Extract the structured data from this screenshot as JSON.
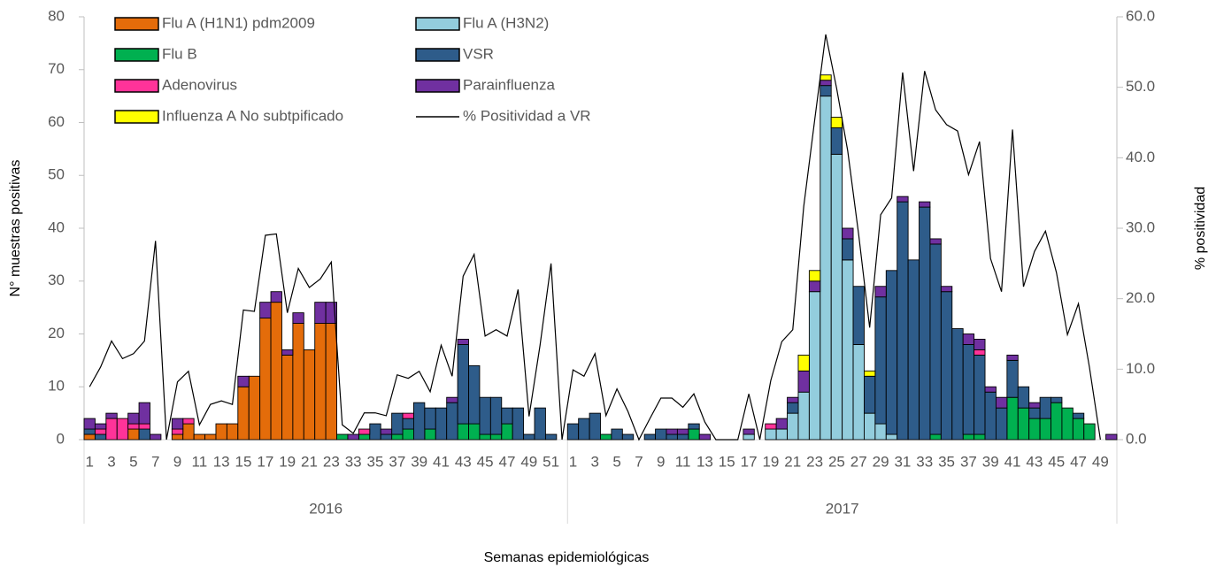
{
  "chart_data": {
    "type": "bar",
    "stacked": true,
    "x_label": "Semanas epidemiológicas",
    "y_label": "N° muestras positivas",
    "y2_label": "% positividad",
    "legend": "top-left",
    "groups": [
      {
        "name": "2016",
        "categories": [
          "1",
          null,
          "3",
          null,
          "5",
          null,
          "7",
          null,
          "9",
          null,
          "11",
          null,
          "13",
          null,
          "15",
          null,
          "17",
          null,
          "19",
          null,
          "21",
          null,
          "23",
          null,
          "33",
          null,
          "35",
          null,
          "37",
          null,
          "39",
          null,
          "41",
          null,
          "43",
          null,
          "45",
          null,
          "47",
          null,
          "49",
          null,
          "51",
          null
        ]
      },
      {
        "name": "2017",
        "categories": [
          "1",
          null,
          "3",
          null,
          "5",
          null,
          "7",
          null,
          "9",
          null,
          "11",
          null,
          "13",
          null,
          "15",
          null,
          "17",
          null,
          "19",
          null,
          "21",
          null,
          "23",
          null,
          "25",
          null,
          "27",
          null,
          "29",
          null,
          "31",
          null,
          "33",
          null,
          "35",
          null,
          "37",
          null,
          "39",
          null,
          "41",
          null,
          "43",
          null,
          "45",
          null,
          "47",
          null,
          "49",
          null
        ]
      }
    ],
    "series": [
      {
        "name": "Flu A (H1N1) pdm2009",
        "color": "#e46c0a",
        "values": [
          1,
          0,
          0,
          0,
          2,
          0,
          0,
          0,
          1,
          3,
          1,
          1,
          3,
          3,
          10,
          12,
          23,
          26,
          16,
          22,
          17,
          22,
          22,
          0,
          0,
          0,
          0,
          0,
          0,
          0,
          0,
          0,
          0,
          0,
          0,
          0,
          0,
          0,
          0,
          0,
          0,
          0,
          0,
          0,
          0,
          0,
          0,
          0,
          0,
          0,
          0,
          0,
          0,
          0,
          0,
          0,
          0,
          0,
          0,
          0,
          0,
          0,
          0,
          0,
          0,
          0,
          0,
          0,
          0,
          0,
          0,
          0,
          0,
          0,
          0,
          0,
          0,
          0,
          0,
          0,
          0,
          0,
          0,
          0,
          0,
          0,
          0,
          0,
          0,
          0,
          0,
          0,
          0,
          0
        ]
      },
      {
        "name": "Flu A (H3N2)",
        "color": "#93cddd",
        "values": [
          0,
          0,
          0,
          0,
          0,
          0,
          0,
          0,
          0,
          0,
          0,
          0,
          0,
          0,
          0,
          0,
          0,
          0,
          0,
          0,
          0,
          0,
          0,
          0,
          0,
          0,
          0,
          0,
          0,
          0,
          0,
          0,
          0,
          0,
          0,
          0,
          0,
          0,
          0,
          0,
          0,
          0,
          0,
          0,
          0,
          0,
          0,
          0,
          0,
          0,
          0,
          0,
          0,
          0,
          0,
          0,
          0,
          0,
          0,
          0,
          1,
          0,
          2,
          2,
          5,
          9,
          28,
          65,
          54,
          34,
          18,
          5,
          3,
          1,
          0,
          0,
          0,
          0,
          0,
          0,
          0,
          0,
          0,
          0,
          0,
          0,
          0,
          0,
          0,
          0,
          0,
          0,
          0,
          0
        ]
      },
      {
        "name": "Flu B",
        "color": "#00b050",
        "values": [
          0,
          0,
          0,
          0,
          0,
          0,
          0,
          0,
          0,
          0,
          0,
          0,
          0,
          0,
          0,
          0,
          0,
          0,
          0,
          0,
          0,
          0,
          0,
          1,
          0,
          1,
          0,
          0,
          1,
          2,
          0,
          2,
          0,
          0,
          3,
          3,
          1,
          1,
          3,
          0,
          0,
          0,
          0,
          0,
          0,
          0,
          0,
          1,
          0,
          0,
          0,
          0,
          0,
          0,
          0,
          2,
          0,
          0,
          0,
          0,
          0,
          0,
          0,
          0,
          0,
          0,
          0,
          0,
          0,
          0,
          0,
          0,
          0,
          0,
          0,
          0,
          0,
          1,
          0,
          0,
          1,
          1,
          0,
          0,
          8,
          6,
          4,
          4,
          7,
          6,
          4,
          3,
          0,
          0
        ]
      },
      {
        "name": "VSR",
        "color": "#2e5c8a",
        "values": [
          1,
          1,
          0,
          0,
          0,
          2,
          0,
          0,
          0,
          0,
          0,
          0,
          0,
          0,
          0,
          0,
          0,
          0,
          0,
          0,
          0,
          0,
          0,
          0,
          0,
          0,
          3,
          1,
          4,
          2,
          7,
          4,
          6,
          7,
          15,
          11,
          7,
          7,
          3,
          6,
          1,
          6,
          1,
          0,
          3,
          4,
          5,
          0,
          2,
          1,
          0,
          1,
          2,
          1,
          1,
          1,
          0,
          0,
          0,
          0,
          0,
          0,
          0,
          0,
          2,
          0,
          0,
          2,
          5,
          4,
          11,
          7,
          24,
          31,
          45,
          34,
          44,
          36,
          28,
          21,
          17,
          15,
          9,
          6,
          7,
          4,
          2,
          4,
          1,
          0,
          1,
          0,
          0,
          0
        ]
      },
      {
        "name": "Adenovirus",
        "color": "#ff3399",
        "values": [
          0,
          1,
          4,
          4,
          1,
          1,
          0,
          0,
          1,
          1,
          0,
          0,
          0,
          0,
          0,
          0,
          0,
          0,
          0,
          0,
          0,
          0,
          0,
          0,
          0,
          1,
          0,
          0,
          0,
          1,
          0,
          0,
          0,
          0,
          0,
          0,
          0,
          0,
          0,
          0,
          0,
          0,
          0,
          0,
          0,
          0,
          0,
          0,
          0,
          0,
          0,
          0,
          0,
          0,
          0,
          0,
          0,
          0,
          0,
          0,
          0,
          0,
          1,
          0,
          0,
          0,
          0,
          0,
          0,
          0,
          0,
          0,
          0,
          0,
          0,
          0,
          0,
          0,
          0,
          0,
          0,
          1,
          0,
          0,
          0,
          0,
          0,
          0,
          0,
          0,
          0,
          0,
          0,
          0
        ]
      },
      {
        "name": "Parainfluenza",
        "color": "#7030a0",
        "values": [
          2,
          1,
          1,
          0,
          2,
          4,
          1,
          0,
          2,
          0,
          0,
          0,
          0,
          0,
          2,
          0,
          3,
          2,
          1,
          2,
          0,
          4,
          4,
          0,
          1,
          0,
          0,
          1,
          0,
          0,
          0,
          0,
          0,
          1,
          1,
          0,
          0,
          0,
          0,
          0,
          0,
          0,
          0,
          0,
          0,
          0,
          0,
          0,
          0,
          0,
          0,
          0,
          0,
          1,
          1,
          0,
          1,
          0,
          0,
          0,
          1,
          0,
          0,
          2,
          1,
          4,
          2,
          1,
          0,
          2,
          0,
          0,
          2,
          0,
          1,
          0,
          1,
          1,
          1,
          0,
          2,
          2,
          1,
          2,
          1,
          0,
          1,
          0,
          0,
          0,
          0,
          0,
          0,
          1
        ]
      },
      {
        "name": "Influenza A No subtpificado",
        "color": "#ffff00",
        "values": [
          0,
          0,
          0,
          0,
          0,
          0,
          0,
          0,
          0,
          0,
          0,
          0,
          0,
          0,
          0,
          0,
          0,
          0,
          0,
          0,
          0,
          0,
          0,
          0,
          0,
          0,
          0,
          0,
          0,
          0,
          0,
          0,
          0,
          0,
          0,
          0,
          0,
          0,
          0,
          0,
          0,
          0,
          0,
          0,
          0,
          0,
          0,
          0,
          0,
          0,
          0,
          0,
          0,
          0,
          0,
          0,
          0,
          0,
          0,
          0,
          0,
          0,
          0,
          0,
          0,
          3,
          2,
          1,
          2,
          0,
          0,
          1,
          0,
          0,
          0,
          0,
          0,
          0,
          0,
          0,
          0,
          0,
          0,
          0,
          0,
          0,
          0,
          0,
          0,
          0,
          0,
          0,
          0,
          0
        ]
      },
      {
        "name": "% Positividad a VR",
        "type": "line",
        "axis": "y2",
        "color": "#000000",
        "values": [
          7.5,
          10.3,
          14,
          11.5,
          12.2,
          14,
          28.2,
          0,
          8.2,
          9.7,
          2.1,
          5,
          5.5,
          5,
          18.4,
          18.2,
          29,
          29.2,
          18,
          24.3,
          21.6,
          22.8,
          25.2,
          2.1,
          0.9,
          3.8,
          3.8,
          3.4,
          9.2,
          8.7,
          9.7,
          6.8,
          13.4,
          9,
          23.2,
          26.3,
          14.7,
          15.6,
          14.7,
          21.3,
          3.3,
          13.4,
          25,
          0,
          9.9,
          9,
          12.2,
          3.4,
          7.2,
          4,
          0,
          3,
          5.9,
          5.9,
          4.6,
          6.5,
          2.5,
          0,
          0,
          0,
          6.5,
          0,
          8.4,
          13.9,
          15.6,
          33.1,
          45.4,
          57.5,
          49.8,
          41,
          29.1,
          15.9,
          31.9,
          34.3,
          52.1,
          38.1,
          52.3,
          46.8,
          44.7,
          43.8,
          37.6,
          42.3,
          25.7,
          21,
          44,
          21.7,
          26.7,
          29.6,
          23.7,
          14.9,
          19.3,
          10.3,
          0,
          null
        ]
      }
    ],
    "ylim": [
      0,
      80
    ],
    "yticks": [
      0,
      10,
      20,
      30,
      40,
      50,
      60,
      70,
      80
    ],
    "y2lim": [
      0,
      60
    ],
    "y2ticks": [
      {
        "value": 0,
        "label": "0.0"
      },
      {
        "value": 10,
        "label": "10.0"
      },
      {
        "value": 20,
        "label": "20.0"
      },
      {
        "value": 30,
        "label": "30.0"
      },
      {
        "value": 40,
        "label": "40.0"
      },
      {
        "value": 50,
        "label": "50.0"
      },
      {
        "value": 60,
        "label": "60.0"
      }
    ]
  }
}
